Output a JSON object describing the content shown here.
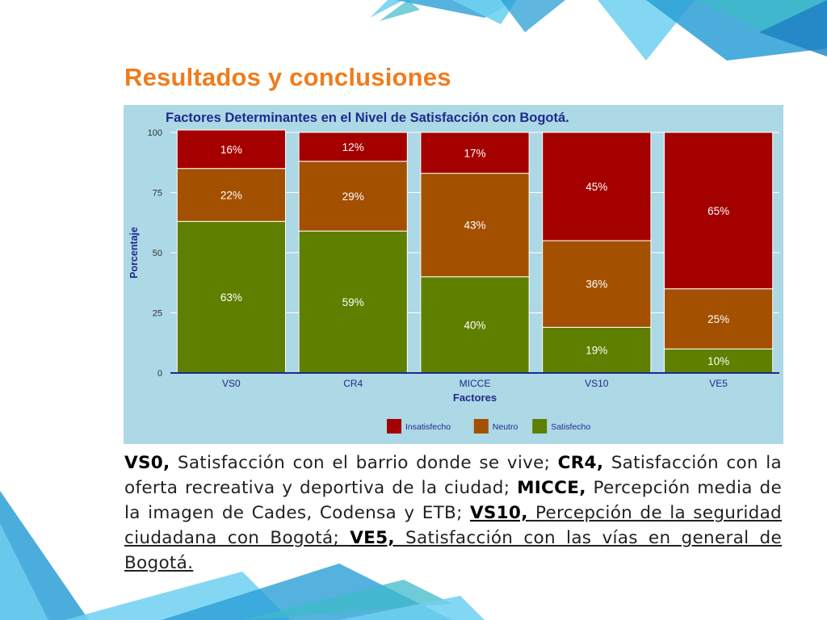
{
  "slide": {
    "title": "Resultados y conclusiones"
  },
  "colors": {
    "title": "#f07c1b",
    "panel_bg": "#add8e6",
    "chart_title": "#1f2a8c",
    "axis": "#1f2a8c",
    "Insatisfecho": "#a50000",
    "Neutro": "#a35000",
    "Satisfecho": "#5f7f00",
    "deco_blue": "#2a9fd6",
    "deco_light": "#6fd0f0",
    "deco_teal": "#3fb9c9"
  },
  "chart_data": {
    "type": "bar",
    "stacked": true,
    "title": "Factores Determinantes en el Nivel de Satisfacción con Bogotá.",
    "xlabel": "Factores",
    "ylabel": "Porcentaje",
    "ylim": [
      0,
      100
    ],
    "yticks": [
      0,
      25,
      50,
      75,
      100
    ],
    "grid": true,
    "legend_position": "bottom",
    "categories": [
      "VS0",
      "CR4",
      "MICCE",
      "VS10",
      "VE5"
    ],
    "series": [
      {
        "name": "Satisfecho",
        "values": [
          63,
          59,
          40,
          19,
          10
        ],
        "labels": [
          "63%",
          "59%",
          "40%",
          "19%",
          "10%"
        ]
      },
      {
        "name": "Neutro",
        "values": [
          22,
          29,
          43,
          36,
          25
        ],
        "labels": [
          "22%",
          "29%",
          "43%",
          "36%",
          "25%"
        ]
      },
      {
        "name": "Insatisfecho",
        "values": [
          16,
          12,
          17,
          45,
          65
        ],
        "labels": [
          "16%",
          "12%",
          "17%",
          "45%",
          "65%"
        ]
      }
    ],
    "legend": [
      "Insatisfecho",
      "Neutro",
      "Satisfecho"
    ]
  },
  "caption": {
    "vs0_code": "VS0,",
    "vs0_text": " Satisfacción con el barrio donde se vive; ",
    "cr4_code": "CR4,",
    "cr4_text": " Satisfacción con la oferta recreativa y deportiva de la ciudad; ",
    "micce_code": "MICCE,",
    "micce_text": " Percepción media de la imagen de Cades, Codensa y ETB; ",
    "vs10_code": "VS10,",
    "vs10_text": " Percepción de la seguridad ciudadana con Bogotá; ",
    "ve5_code": "VE5,",
    "ve5_text": " Satisfacción con las vías en general de Bogotá."
  }
}
